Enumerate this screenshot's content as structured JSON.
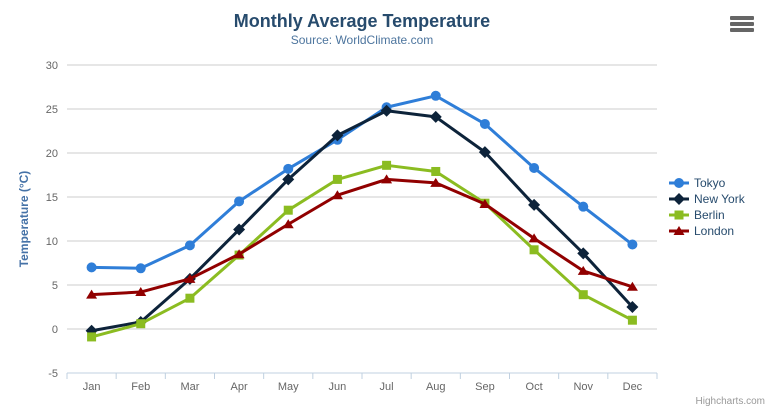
{
  "colors": {
    "title": "#274b6d",
    "subtitle": "#4d759e",
    "axis_title": "#4572a7",
    "tick_label": "#666666",
    "grid": "#cccccc",
    "axis_line": "#c0d0e0",
    "legend_text": "#274b6d",
    "credits": "#999999",
    "menu_icon": "#666666",
    "background": "#ffffff"
  },
  "export_menu": {
    "icon": "hamburger-icon"
  },
  "credits": {
    "label": "Highcharts.com"
  },
  "chart_data": {
    "type": "line",
    "title": "Monthly Average Temperature",
    "subtitle": "Source: WorldClimate.com",
    "xlabel": "",
    "ylabel": "Temperature (°C)",
    "ylim": [
      -5,
      30
    ],
    "ytick_interval": 5,
    "yticks": [
      -5,
      0,
      5,
      10,
      15,
      20,
      25,
      30
    ],
    "grid": true,
    "legend_position": "right",
    "categories": [
      "Jan",
      "Feb",
      "Mar",
      "Apr",
      "May",
      "Jun",
      "Jul",
      "Aug",
      "Sep",
      "Oct",
      "Nov",
      "Dec"
    ],
    "series": [
      {
        "name": "Tokyo",
        "color": "#2f7ed8",
        "marker": "circle",
        "values": [
          7.0,
          6.9,
          9.5,
          14.5,
          18.2,
          21.5,
          25.2,
          26.5,
          23.3,
          18.3,
          13.9,
          9.6
        ]
      },
      {
        "name": "New York",
        "color": "#0d233a",
        "marker": "diamond",
        "values": [
          -0.2,
          0.8,
          5.7,
          11.3,
          17.0,
          22.0,
          24.8,
          24.1,
          20.1,
          14.1,
          8.6,
          2.5
        ]
      },
      {
        "name": "Berlin",
        "color": "#8bbc21",
        "marker": "square",
        "values": [
          -0.9,
          0.6,
          3.5,
          8.4,
          13.5,
          17.0,
          18.6,
          17.9,
          14.3,
          9.0,
          3.9,
          1.0
        ]
      },
      {
        "name": "London",
        "color": "#910000",
        "marker": "triangle",
        "values": [
          3.9,
          4.2,
          5.7,
          8.5,
          11.9,
          15.2,
          17.0,
          16.6,
          14.2,
          10.3,
          6.6,
          4.8
        ]
      }
    ]
  }
}
